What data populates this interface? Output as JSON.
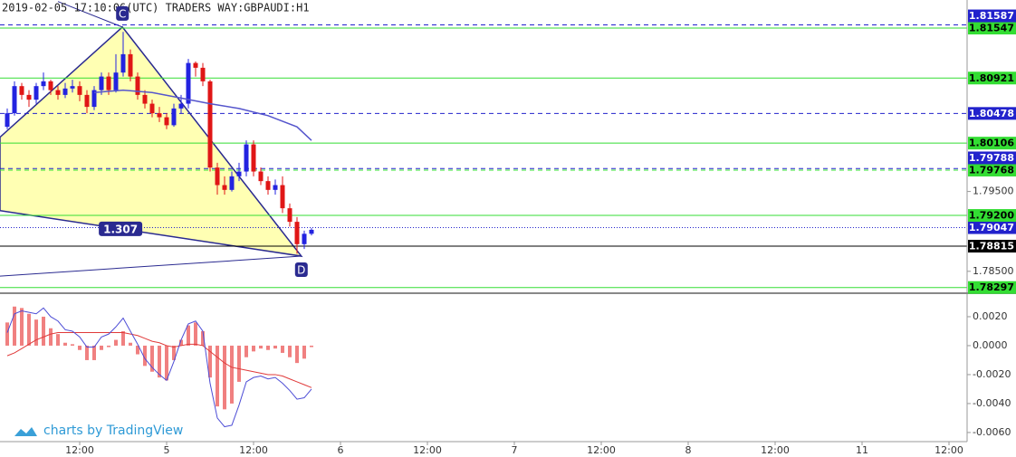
{
  "chart_data": {
    "type": "candlestick",
    "title": "2019-02-05 17:10:06(UTC) TRADERS WAY:GBPAUDI:H1",
    "watermark": "charts by TradingView",
    "xlim": [
      1,
      134.5
    ],
    "xticks": [
      {
        "value": 12,
        "label": "12:00"
      },
      {
        "value": 24,
        "label": "5"
      },
      {
        "value": 36,
        "label": "12:00"
      },
      {
        "value": 48,
        "label": "6"
      },
      {
        "value": 60,
        "label": "12:00"
      },
      {
        "value": 72,
        "label": "7"
      },
      {
        "value": 84,
        "label": "12:00"
      },
      {
        "value": 96,
        "label": "8"
      },
      {
        "value": 108,
        "label": "12:00"
      },
      {
        "value": 120,
        "label": "11"
      },
      {
        "value": 132,
        "label": "12:00"
      }
    ],
    "ylim": [
      1.78237,
      1.81899
    ],
    "yticks": [
      {
        "value": 1.795,
        "label": "1.79500"
      },
      {
        "value": 1.785,
        "label": "1.78500"
      }
    ],
    "up_color": "#2323e0",
    "down_color": "#e01616",
    "x": [
      2,
      3,
      4,
      5,
      6,
      7,
      8,
      9,
      10,
      11,
      12,
      13,
      14,
      15,
      16,
      17,
      18,
      19,
      20,
      21,
      22,
      23,
      24,
      25,
      26,
      27,
      28,
      29,
      30,
      31,
      32,
      33,
      34,
      35,
      36,
      37,
      38,
      39,
      40,
      41,
      42,
      43,
      44
    ],
    "open": [
      1.8031,
      1.8048,
      1.8082,
      1.8071,
      1.8065,
      1.8082,
      1.8088,
      1.8077,
      1.8071,
      1.8079,
      1.8082,
      1.8071,
      1.8056,
      1.8077,
      1.8094,
      1.8077,
      1.8099,
      1.8122,
      1.8094,
      1.8071,
      1.806,
      1.8048,
      1.8043,
      1.8033,
      1.8054,
      1.806,
      1.8111,
      1.8105,
      1.8088,
      1.798,
      1.7958,
      1.7952,
      1.7969,
      1.7975,
      1.8009,
      1.7975,
      1.7963,
      1.7952,
      1.7958,
      1.7929,
      1.7912,
      1.7884,
      1.7897
    ],
    "high": [
      1.8054,
      1.8088,
      1.8086,
      1.8077,
      1.8086,
      1.8099,
      1.809,
      1.8082,
      1.8086,
      1.809,
      1.8088,
      1.8077,
      1.8082,
      1.8099,
      1.8099,
      1.8122,
      1.815,
      1.8128,
      1.8099,
      1.8077,
      1.8065,
      1.8056,
      1.8048,
      1.806,
      1.8071,
      1.8116,
      1.8113,
      1.8111,
      1.809,
      1.7986,
      1.7969,
      1.7975,
      1.7986,
      1.8014,
      1.8014,
      1.798,
      1.7969,
      1.7965,
      1.7969,
      1.7935,
      1.7918,
      1.7901,
      1.7904
    ],
    "low": [
      1.8028,
      1.8045,
      1.8065,
      1.8056,
      1.806,
      1.8077,
      1.8071,
      1.8065,
      1.8067,
      1.8074,
      1.8063,
      1.8048,
      1.8052,
      1.8071,
      1.8071,
      1.8074,
      1.8094,
      1.8088,
      1.8065,
      1.8054,
      1.8043,
      1.8037,
      1.8028,
      1.8031,
      1.8048,
      1.8054,
      1.8094,
      1.8082,
      1.7975,
      1.7946,
      1.7946,
      1.795,
      1.7963,
      1.7969,
      1.7969,
      1.7958,
      1.7946,
      1.7946,
      1.7923,
      1.7906,
      1.7872,
      1.7878,
      1.7895
    ],
    "close": [
      1.8048,
      1.8082,
      1.8071,
      1.8065,
      1.8082,
      1.8088,
      1.8077,
      1.8071,
      1.8079,
      1.8082,
      1.8071,
      1.8056,
      1.8077,
      1.8094,
      1.8077,
      1.8099,
      1.8122,
      1.8094,
      1.8071,
      1.806,
      1.8048,
      1.8043,
      1.8033,
      1.8054,
      1.806,
      1.8111,
      1.8105,
      1.8088,
      1.798,
      1.7958,
      1.7952,
      1.7969,
      1.7975,
      1.8009,
      1.7975,
      1.7963,
      1.7952,
      1.7958,
      1.7929,
      1.7912,
      1.7884,
      1.7897,
      1.7902
    ],
    "moving_average": {
      "color": "#5555cc",
      "x": [
        14,
        18,
        22,
        26,
        30,
        34,
        38,
        42,
        44
      ],
      "values": [
        1.8074,
        1.8077,
        1.8074,
        1.8067,
        1.806,
        1.8054,
        1.8045,
        1.8031,
        1.8014
      ]
    },
    "pattern": {
      "fill": "#ffff99",
      "color": "#2a2a90",
      "points": [
        {
          "x": 1,
          "y": 1.8018
        },
        {
          "label": "C",
          "x": 17.9,
          "y": 1.8156
        },
        {
          "label": "D",
          "x": 42.6,
          "y": 1.7869
        },
        {
          "x": 1,
          "y": 1.7926
        }
      ],
      "lines": [
        [
          {
            "x": 1,
            "y": 1.7844
          },
          {
            "x": 42.6,
            "y": 1.7869
          }
        ],
        [
          {
            "x": 9,
            "y": 1.8188
          },
          {
            "x": 17.9,
            "y": 1.8156
          }
        ]
      ],
      "ratio": 1.307
    },
    "levels": [
      {
        "value": 1.81587,
        "color": "#2222cc",
        "label_text_color": "#ffffff",
        "style": "dashed"
      },
      {
        "value": 1.81547,
        "color": "#33dd33",
        "label_text_color": "#000000",
        "style": "solid"
      },
      {
        "value": 1.80921,
        "color": "#33dd33",
        "label_text_color": "#000000",
        "style": "solid"
      },
      {
        "value": 1.80478,
        "color": "#2222cc",
        "label_text_color": "#ffffff",
        "style": "dashed"
      },
      {
        "value": 1.80106,
        "color": "#33dd33",
        "label_text_color": "#000000",
        "style": "solid"
      },
      {
        "value": 1.79788,
        "color": "#2222cc",
        "label_text_color": "#ffffff",
        "style": "dashed"
      },
      {
        "value": 1.79768,
        "color": "#33dd33",
        "label_text_color": "#000000",
        "style": "dashed"
      },
      {
        "value": 1.792,
        "label": "1.79200",
        "color": "#33dd33",
        "label_text_color": "#000000",
        "style": "solid"
      },
      {
        "value": 1.79047,
        "color": "#2222cc",
        "label_text_color": "#ffffff",
        "style": "dotted"
      },
      {
        "value": 1.78815,
        "color": "#000000",
        "label_text_color": "#ffffff",
        "style": "solid"
      },
      {
        "value": 1.78297,
        "color": "#33dd33",
        "label_text_color": "#000000",
        "style": "solid"
      }
    ],
    "indicator": {
      "ylim": [
        -0.00663,
        0.00356
      ],
      "yticks": [
        {
          "value": 0.002,
          "label": "0.0020"
        },
        {
          "value": 0,
          "label": "0.0000"
        },
        {
          "value": -0.002,
          "label": "-0.0020"
        },
        {
          "value": -0.004,
          "label": "-0.0040"
        },
        {
          "value": -0.006,
          "label": "-0.0060"
        }
      ],
      "histogram": {
        "color": "#f08080",
        "values": [
          0.0016,
          0.0027,
          0.0026,
          0.0022,
          0.0018,
          0.002,
          0.0012,
          0.0008,
          0.0002,
          0.0001,
          -0.0003,
          -0.001,
          -0.001,
          -0.0003,
          -0.0001,
          0.0004,
          0.001,
          0.0002,
          -0.0006,
          -0.0014,
          -0.0018,
          -0.0022,
          -0.0024,
          -0.001,
          0.0004,
          0.0014,
          0.0016,
          0.001,
          -0.0022,
          -0.0042,
          -0.0044,
          -0.004,
          -0.0025,
          -0.0008,
          -0.0004,
          -0.0002,
          -0.0003,
          -0.0002,
          -0.0005,
          -0.0008,
          -0.0012,
          -0.0009,
          -0.0001
        ]
      },
      "macd": {
        "color": "#4d4dd6",
        "values": [
          0.0009,
          0.0022,
          0.0024,
          0.0023,
          0.0022,
          0.0026,
          0.002,
          0.0017,
          0.0011,
          0.001,
          0.0006,
          -0.0001,
          -0.0001,
          0.0006,
          0.0008,
          0.0013,
          0.0019,
          0.001,
          0.0001,
          -0.0009,
          -0.0015,
          -0.002,
          -0.0024,
          -0.0011,
          0.0004,
          0.0015,
          0.0017,
          0.001,
          -0.0026,
          -0.005,
          -0.0056,
          -0.0055,
          -0.0041,
          -0.0025,
          -0.0022,
          -0.0021,
          -0.0023,
          -0.0022,
          -0.0026,
          -0.0031,
          -0.0037,
          -0.0036,
          -0.003
        ]
      },
      "signal": {
        "color": "#e03a3a",
        "values": [
          -0.0007,
          -0.0005,
          -0.0002,
          0.0001,
          0.0004,
          0.0006,
          0.0008,
          0.0009,
          0.0009,
          0.0009,
          0.0009,
          0.0009,
          0.0009,
          0.0009,
          0.0009,
          0.0009,
          0.0009,
          0.0008,
          0.0007,
          0.0005,
          0.0003,
          0.0002,
          0.0,
          -0.0001,
          0.0,
          0.0001,
          0.0001,
          0.0,
          -0.0004,
          -0.0008,
          -0.0012,
          -0.0015,
          -0.0016,
          -0.0017,
          -0.0018,
          -0.0019,
          -0.002,
          -0.002,
          -0.0021,
          -0.0023,
          -0.0025,
          -0.0027,
          -0.0029
        ]
      }
    }
  }
}
